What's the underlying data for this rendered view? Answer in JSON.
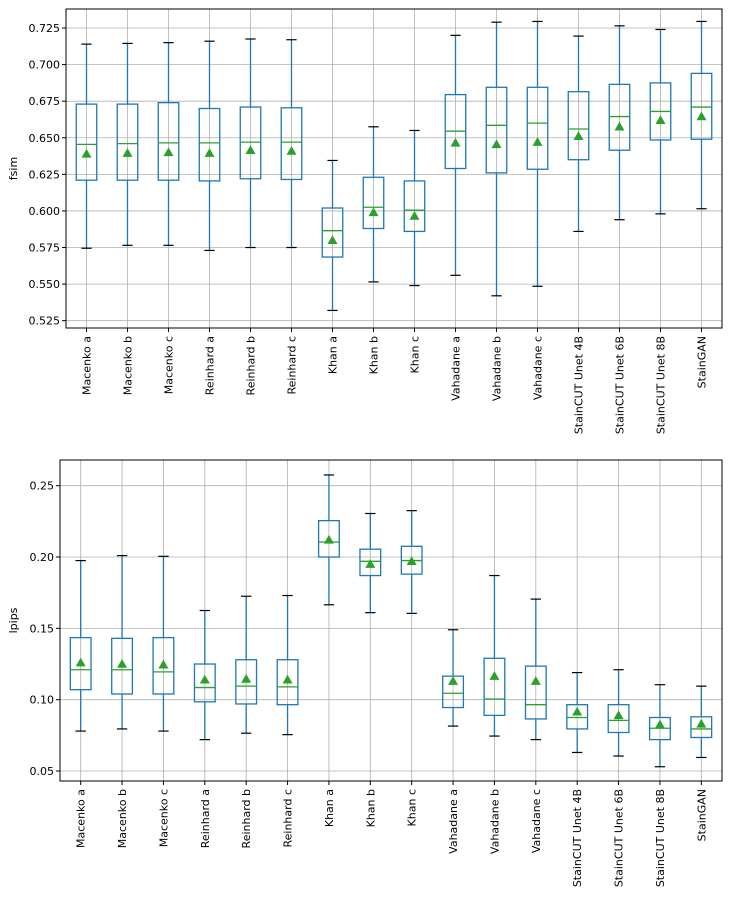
{
  "chart_data": [
    {
      "type": "boxplot",
      "ylabel": "fsim",
      "ylim": [
        0.52,
        0.738
      ],
      "yticks": [
        0.525,
        0.55,
        0.575,
        0.6,
        0.625,
        0.65,
        0.675,
        0.7,
        0.725
      ],
      "ytick_labels": [
        "0.525",
        "0.550",
        "0.575",
        "0.600",
        "0.625",
        "0.650",
        "0.675",
        "0.700",
        "0.725"
      ],
      "grid": true,
      "categories": [
        "Macenko a",
        "Macenko b",
        "Macenko c",
        "Reinhard a",
        "Reinhard b",
        "Reinhard c",
        "Khan a",
        "Khan b",
        "Khan c",
        "Vahadane a",
        "Vahadane b",
        "Vahadane c",
        "StainCUT Unet 4B",
        "StainCUT Unet 6B",
        "StainCUT Unet 8B",
        "StainGAN"
      ],
      "boxes": [
        {
          "whislo": 0.5745,
          "q1": 0.621,
          "med": 0.6455,
          "q3": 0.673,
          "whishi": 0.714,
          "mean": 0.639
        },
        {
          "whislo": 0.5765,
          "q1": 0.621,
          "med": 0.646,
          "q3": 0.673,
          "whishi": 0.7145,
          "mean": 0.6395
        },
        {
          "whislo": 0.5765,
          "q1": 0.621,
          "med": 0.6465,
          "q3": 0.674,
          "whishi": 0.715,
          "mean": 0.64
        },
        {
          "whislo": 0.573,
          "q1": 0.6205,
          "med": 0.6465,
          "q3": 0.67,
          "whishi": 0.716,
          "mean": 0.6395
        },
        {
          "whislo": 0.575,
          "q1": 0.622,
          "med": 0.647,
          "q3": 0.671,
          "whishi": 0.7175,
          "mean": 0.6415
        },
        {
          "whislo": 0.575,
          "q1": 0.6215,
          "med": 0.647,
          "q3": 0.6705,
          "whishi": 0.717,
          "mean": 0.641
        },
        {
          "whislo": 0.532,
          "q1": 0.5685,
          "med": 0.5865,
          "q3": 0.602,
          "whishi": 0.6345,
          "mean": 0.58
        },
        {
          "whislo": 0.5515,
          "q1": 0.588,
          "med": 0.6025,
          "q3": 0.623,
          "whishi": 0.6575,
          "mean": 0.599
        },
        {
          "whislo": 0.549,
          "q1": 0.586,
          "med": 0.6005,
          "q3": 0.6205,
          "whishi": 0.655,
          "mean": 0.5965
        },
        {
          "whislo": 0.556,
          "q1": 0.629,
          "med": 0.6545,
          "q3": 0.6795,
          "whishi": 0.72,
          "mean": 0.6465
        },
        {
          "whislo": 0.542,
          "q1": 0.626,
          "med": 0.6585,
          "q3": 0.6845,
          "whishi": 0.729,
          "mean": 0.6455
        },
        {
          "whislo": 0.5485,
          "q1": 0.6285,
          "med": 0.66,
          "q3": 0.6845,
          "whishi": 0.7295,
          "mean": 0.647
        },
        {
          "whislo": 0.586,
          "q1": 0.635,
          "med": 0.656,
          "q3": 0.6815,
          "whishi": 0.7195,
          "mean": 0.651
        },
        {
          "whislo": 0.594,
          "q1": 0.6415,
          "med": 0.6645,
          "q3": 0.6865,
          "whishi": 0.7265,
          "mean": 0.6575
        },
        {
          "whislo": 0.598,
          "q1": 0.6485,
          "med": 0.668,
          "q3": 0.6875,
          "whishi": 0.724,
          "mean": 0.662
        },
        {
          "whislo": 0.6015,
          "q1": 0.649,
          "med": 0.671,
          "q3": 0.694,
          "whishi": 0.7295,
          "mean": 0.6645
        }
      ]
    },
    {
      "type": "boxplot",
      "ylabel": "lpips",
      "ylim": [
        0.043,
        0.268
      ],
      "yticks": [
        0.05,
        0.1,
        0.15,
        0.2,
        0.25
      ],
      "ytick_labels": [
        "0.05",
        "0.10",
        "0.15",
        "0.20",
        "0.25"
      ],
      "grid": true,
      "categories": [
        "Macenko a",
        "Macenko b",
        "Macenko c",
        "Reinhard a",
        "Reinhard b",
        "Reinhard c",
        "Khan a",
        "Khan b",
        "Khan c",
        "Vahadane a",
        "Vahadane b",
        "Vahadane c",
        "StainCUT Unet 4B",
        "StainCUT Unet 6B",
        "StainCUT Unet 8B",
        "StainGAN"
      ],
      "boxes": [
        {
          "whislo": 0.078,
          "q1": 0.107,
          "med": 0.121,
          "q3": 0.1435,
          "whishi": 0.1975,
          "mean": 0.126
        },
        {
          "whislo": 0.0795,
          "q1": 0.104,
          "med": 0.121,
          "q3": 0.143,
          "whishi": 0.201,
          "mean": 0.125
        },
        {
          "whislo": 0.078,
          "q1": 0.104,
          "med": 0.1195,
          "q3": 0.1435,
          "whishi": 0.2005,
          "mean": 0.1245
        },
        {
          "whislo": 0.072,
          "q1": 0.0985,
          "med": 0.1085,
          "q3": 0.125,
          "whishi": 0.1625,
          "mean": 0.114
        },
        {
          "whislo": 0.0765,
          "q1": 0.097,
          "med": 0.1095,
          "q3": 0.128,
          "whishi": 0.1725,
          "mean": 0.1145
        },
        {
          "whislo": 0.0755,
          "q1": 0.0965,
          "med": 0.109,
          "q3": 0.128,
          "whishi": 0.173,
          "mean": 0.114
        },
        {
          "whislo": 0.1665,
          "q1": 0.2,
          "med": 0.2105,
          "q3": 0.2255,
          "whishi": 0.2575,
          "mean": 0.212
        },
        {
          "whislo": 0.161,
          "q1": 0.187,
          "med": 0.197,
          "q3": 0.2055,
          "whishi": 0.2305,
          "mean": 0.195
        },
        {
          "whislo": 0.1605,
          "q1": 0.188,
          "med": 0.1975,
          "q3": 0.2075,
          "whishi": 0.2325,
          "mean": 0.197
        },
        {
          "whislo": 0.0815,
          "q1": 0.0945,
          "med": 0.1045,
          "q3": 0.1165,
          "whishi": 0.149,
          "mean": 0.113
        },
        {
          "whislo": 0.0745,
          "q1": 0.089,
          "med": 0.1005,
          "q3": 0.129,
          "whishi": 0.187,
          "mean": 0.1165
        },
        {
          "whislo": 0.072,
          "q1": 0.0865,
          "med": 0.0965,
          "q3": 0.1235,
          "whishi": 0.1705,
          "mean": 0.113
        },
        {
          "whislo": 0.063,
          "q1": 0.0795,
          "med": 0.0875,
          "q3": 0.0965,
          "whishi": 0.119,
          "mean": 0.0915
        },
        {
          "whislo": 0.0605,
          "q1": 0.077,
          "med": 0.0855,
          "q3": 0.0965,
          "whishi": 0.121,
          "mean": 0.089
        },
        {
          "whislo": 0.053,
          "q1": 0.072,
          "med": 0.08,
          "q3": 0.0875,
          "whishi": 0.1105,
          "mean": 0.0825
        },
        {
          "whislo": 0.0595,
          "q1": 0.0735,
          "med": 0.0795,
          "q3": 0.088,
          "whishi": 0.1095,
          "mean": 0.083
        }
      ]
    }
  ],
  "colors": {
    "box": "#1f77b4",
    "median": "#2ca02c",
    "mean_marker": "#2ca02c",
    "whisker_cap": "#000000",
    "grid": "#b0b0b0",
    "axes": "#000000"
  }
}
